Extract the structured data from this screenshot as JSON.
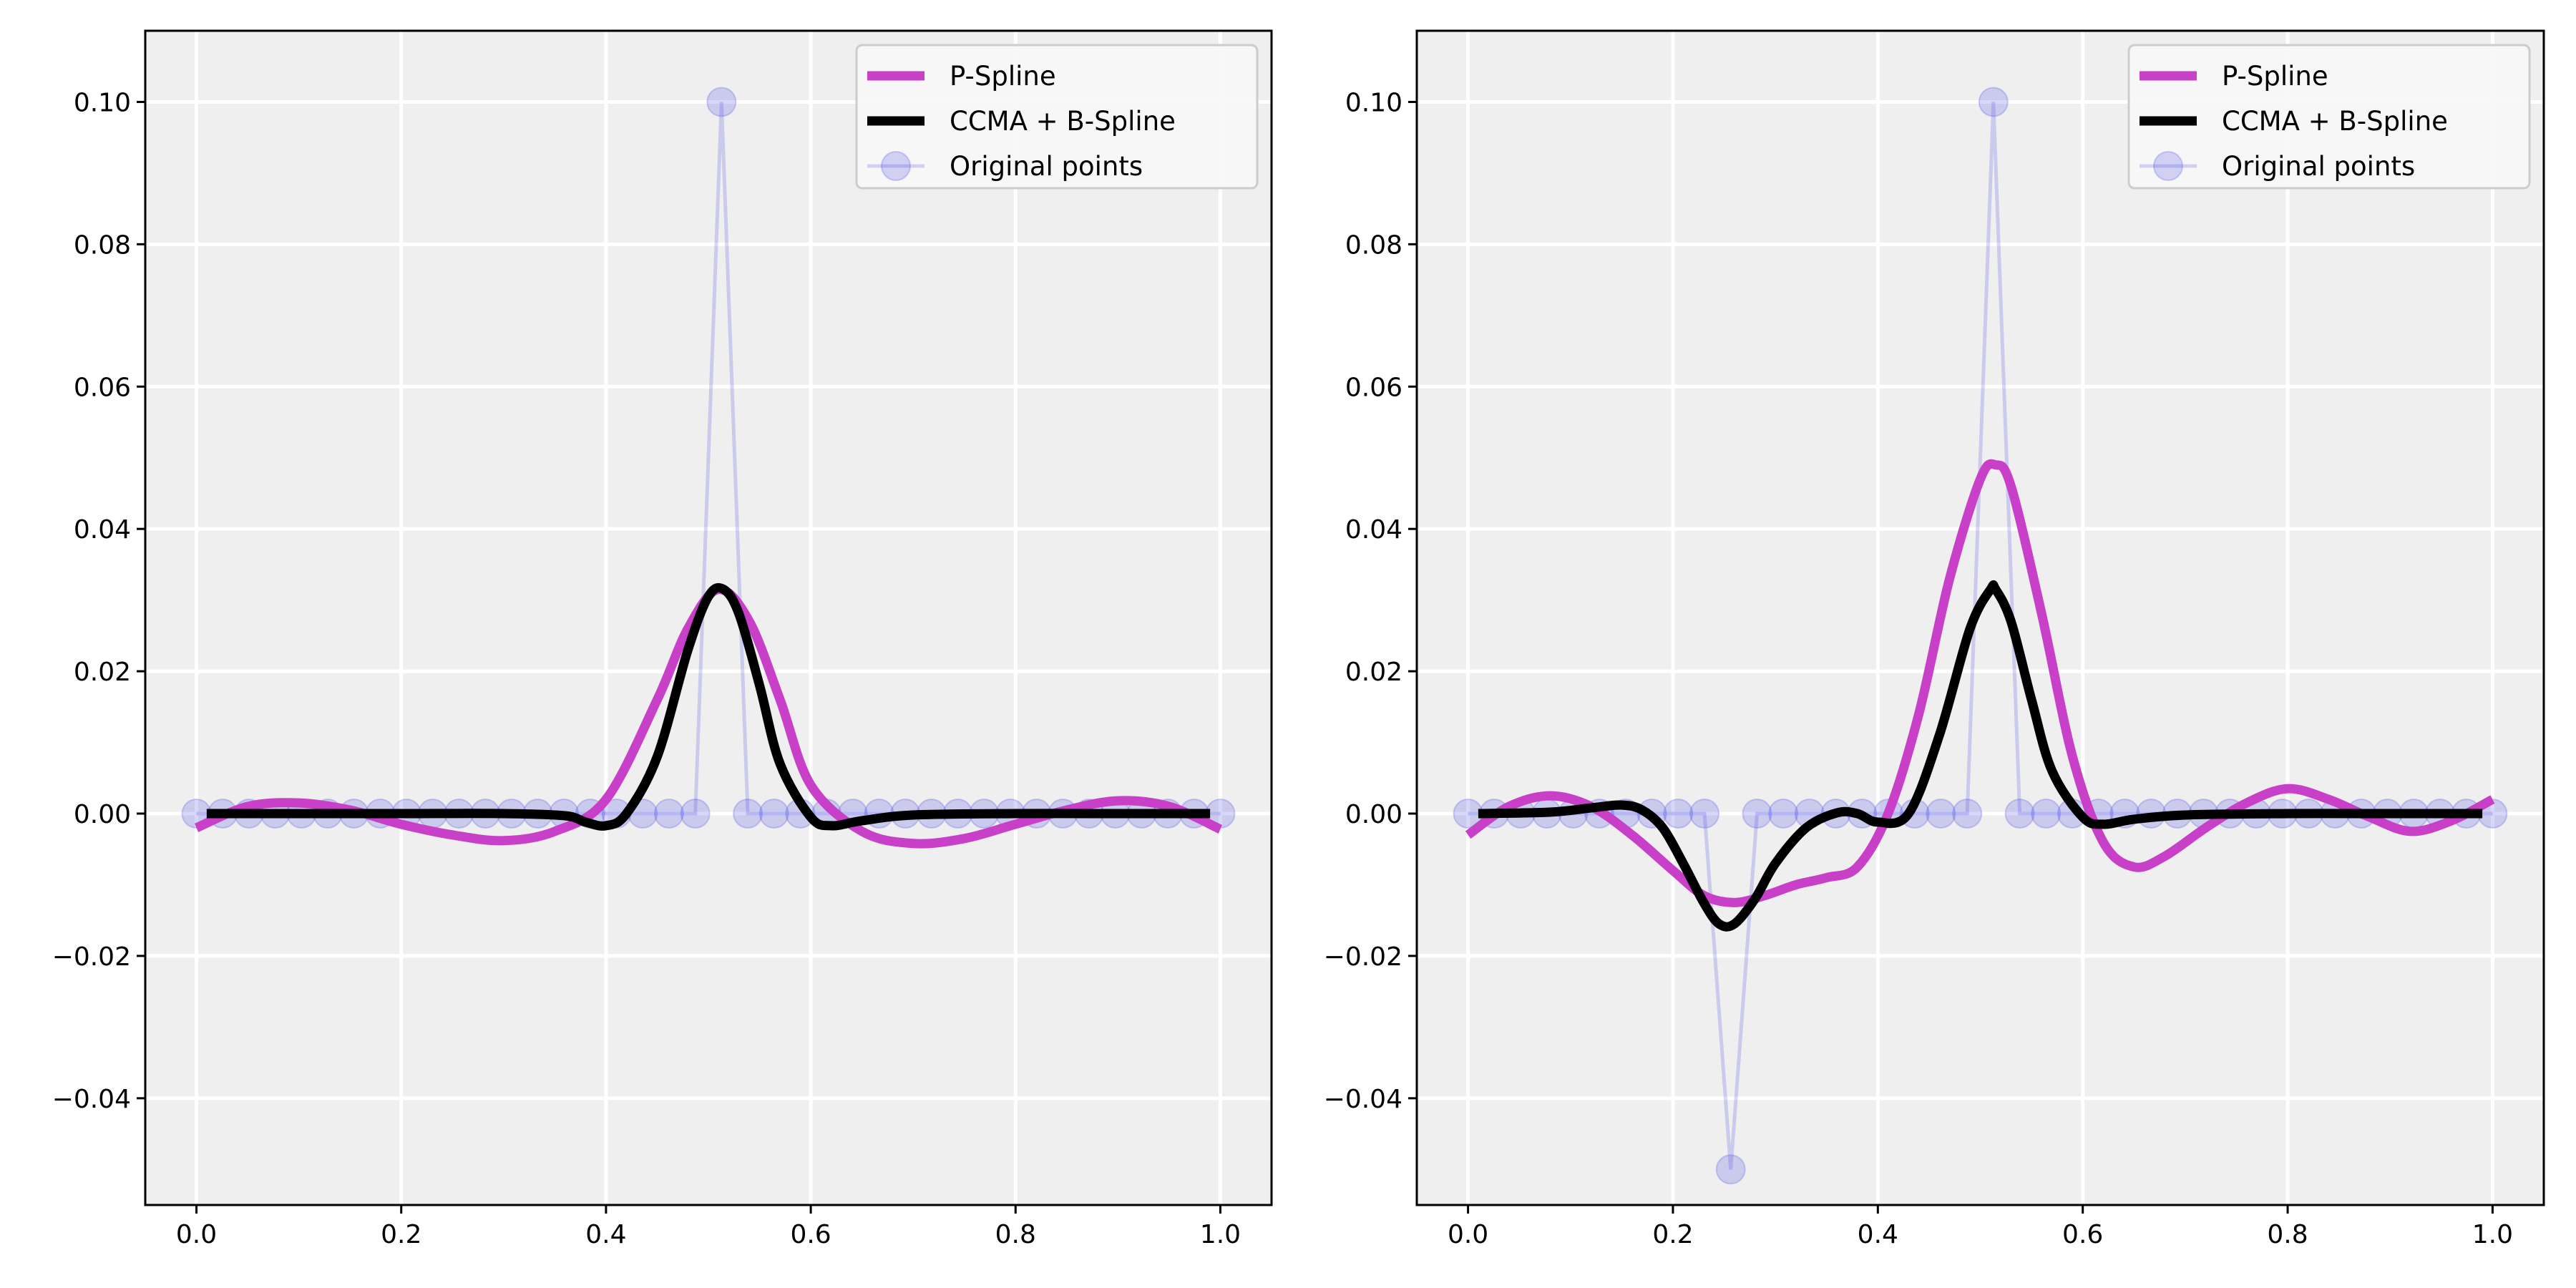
{
  "chart_data": [
    {
      "type": "line",
      "xlim": [
        -0.05,
        1.05
      ],
      "ylim": [
        -0.055,
        0.11
      ],
      "xticks": [
        0.0,
        0.2,
        0.4,
        0.6,
        0.8,
        1.0
      ],
      "xtick_labels": [
        "0.0",
        "0.2",
        "0.4",
        "0.6",
        "0.8",
        "1.0"
      ],
      "yticks": [
        -0.04,
        -0.02,
        0.0,
        0.02,
        0.04,
        0.06,
        0.08,
        0.1
      ],
      "ytick_labels": [
        "−0.04",
        "−0.02",
        "0.00",
        "0.02",
        "0.04",
        "0.06",
        "0.08",
        "0.10"
      ],
      "grid": true,
      "legend_position": "top-right",
      "series": [
        {
          "name": "P-Spline",
          "color": "#c83fc8",
          "x": [
            0.0,
            0.05,
            0.1,
            0.15,
            0.2,
            0.25,
            0.3,
            0.35,
            0.4,
            0.45,
            0.48,
            0.51,
            0.54,
            0.57,
            0.6,
            0.65,
            0.7,
            0.75,
            0.8,
            0.85,
            0.9,
            0.95,
            1.0
          ],
          "y": [
            -0.002,
            0.001,
            0.0015,
            0.0005,
            -0.0015,
            -0.003,
            -0.0038,
            -0.0025,
            0.002,
            0.016,
            0.026,
            0.0315,
            0.027,
            0.016,
            0.004,
            -0.0025,
            -0.0042,
            -0.0035,
            -0.0015,
            0.0005,
            0.0018,
            0.001,
            -0.0022
          ]
        },
        {
          "name": "CCMA + B-Spline",
          "color": "#000000",
          "x": [
            0.01,
            0.1,
            0.2,
            0.3,
            0.36,
            0.38,
            0.4,
            0.42,
            0.45,
            0.48,
            0.5,
            0.515,
            0.53,
            0.55,
            0.57,
            0.6,
            0.62,
            0.65,
            0.7,
            0.8,
            0.9,
            0.99
          ],
          "y": [
            0.0,
            0.0,
            0.0,
            0.0,
            -0.0003,
            -0.0012,
            -0.0017,
            0.0,
            0.008,
            0.023,
            0.0305,
            0.0315,
            0.028,
            0.018,
            0.007,
            -0.0005,
            -0.0017,
            -0.001,
            -0.0002,
            0.0,
            0.0,
            0.0
          ]
        },
        {
          "name": "Original points",
          "color": "#4a4ae6",
          "x": [
            0.0,
            0.0256,
            0.0513,
            0.0769,
            0.1026,
            0.1282,
            0.1538,
            0.1795,
            0.2051,
            0.2308,
            0.2564,
            0.2821,
            0.3077,
            0.3333,
            0.359,
            0.3846,
            0.4103,
            0.4359,
            0.4615,
            0.4872,
            0.5128,
            0.5385,
            0.5641,
            0.5897,
            0.6154,
            0.641,
            0.6667,
            0.6923,
            0.7179,
            0.7436,
            0.7692,
            0.7949,
            0.8205,
            0.8462,
            0.8718,
            0.8974,
            0.9231,
            0.9487,
            0.9744,
            1.0
          ],
          "y": [
            0,
            0,
            0,
            0,
            0,
            0,
            0,
            0,
            0,
            0,
            0,
            0,
            0,
            0,
            0,
            0,
            0,
            0,
            0,
            0,
            0.1,
            0,
            0,
            0,
            0,
            0,
            0,
            0,
            0,
            0,
            0,
            0,
            0,
            0,
            0,
            0,
            0,
            0,
            0,
            0
          ]
        }
      ]
    },
    {
      "type": "line",
      "xlim": [
        -0.05,
        1.05
      ],
      "ylim": [
        -0.055,
        0.11
      ],
      "xticks": [
        0.0,
        0.2,
        0.4,
        0.6,
        0.8,
        1.0
      ],
      "xtick_labels": [
        "0.0",
        "0.2",
        "0.4",
        "0.6",
        "0.8",
        "1.0"
      ],
      "yticks": [
        -0.04,
        -0.02,
        0.0,
        0.02,
        0.04,
        0.06,
        0.08,
        0.1
      ],
      "ytick_labels": [
        "−0.04",
        "−0.02",
        "0.00",
        "0.02",
        "0.04",
        "0.06",
        "0.08",
        "0.10"
      ],
      "grid": true,
      "legend_position": "top-right",
      "series": [
        {
          "name": "P-Spline",
          "color": "#c83fc8",
          "x": [
            0.0,
            0.04,
            0.08,
            0.12,
            0.16,
            0.2,
            0.23,
            0.26,
            0.29,
            0.32,
            0.35,
            0.38,
            0.41,
            0.44,
            0.47,
            0.5,
            0.515,
            0.53,
            0.56,
            0.59,
            0.62,
            0.65,
            0.68,
            0.72,
            0.76,
            0.8,
            0.84,
            0.88,
            0.92,
            0.96,
            1.0
          ],
          "y": [
            -0.003,
            0.001,
            0.0025,
            0.001,
            -0.003,
            -0.008,
            -0.0115,
            -0.0125,
            -0.0115,
            -0.01,
            -0.009,
            -0.0075,
            0.0,
            0.014,
            0.033,
            0.047,
            0.049,
            0.046,
            0.028,
            0.008,
            -0.004,
            -0.0075,
            -0.006,
            -0.002,
            0.0015,
            0.0035,
            0.002,
            -0.0005,
            -0.0025,
            -0.001,
            0.002
          ]
        },
        {
          "name": "CCMA + B-Spline",
          "color": "#000000",
          "x": [
            0.01,
            0.08,
            0.12,
            0.15,
            0.17,
            0.19,
            0.21,
            0.23,
            0.245,
            0.26,
            0.28,
            0.3,
            0.33,
            0.36,
            0.38,
            0.4,
            0.43,
            0.46,
            0.49,
            0.51,
            0.515,
            0.53,
            0.55,
            0.57,
            0.6,
            0.62,
            0.65,
            0.7,
            0.8,
            0.9,
            0.99
          ],
          "y": [
            0.0,
            0.0002,
            0.0008,
            0.0012,
            0.0005,
            -0.002,
            -0.007,
            -0.0125,
            -0.0155,
            -0.0155,
            -0.012,
            -0.007,
            -0.002,
            0.0001,
            0.0,
            -0.0012,
            0.0,
            0.011,
            0.026,
            0.0315,
            0.0315,
            0.027,
            0.016,
            0.006,
            -0.0005,
            -0.0015,
            -0.0008,
            -0.0002,
            0.0,
            0.0,
            0.0
          ]
        },
        {
          "name": "Original points",
          "color": "#4a4ae6",
          "x": [
            0.0,
            0.0256,
            0.0513,
            0.0769,
            0.1026,
            0.1282,
            0.1538,
            0.1795,
            0.2051,
            0.2308,
            0.2564,
            0.2821,
            0.3077,
            0.3333,
            0.359,
            0.3846,
            0.4103,
            0.4359,
            0.4615,
            0.4872,
            0.5128,
            0.5385,
            0.5641,
            0.5897,
            0.6154,
            0.641,
            0.6667,
            0.6923,
            0.7179,
            0.7436,
            0.7692,
            0.7949,
            0.8205,
            0.8462,
            0.8718,
            0.8974,
            0.9231,
            0.9487,
            0.9744,
            1.0
          ],
          "y": [
            0,
            0,
            0,
            0,
            0,
            0,
            0,
            0,
            0,
            0,
            -0.05,
            0,
            0,
            0,
            0,
            0,
            0,
            0,
            0,
            0,
            0.1,
            0,
            0,
            0,
            0,
            0,
            0,
            0,
            0,
            0,
            0,
            0,
            0,
            0,
            0,
            0,
            0,
            0,
            0,
            0
          ]
        }
      ]
    }
  ]
}
